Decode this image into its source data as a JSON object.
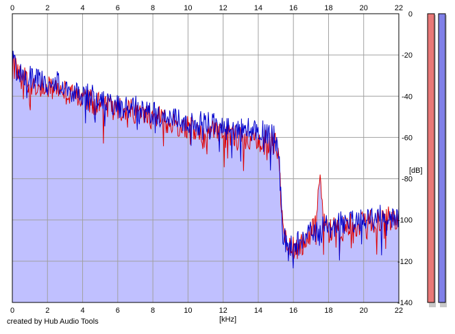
{
  "credit": "created by Hub Audio Tools",
  "chart_data": {
    "type": "line",
    "xlabel": "[kHz]",
    "ylabel": "[dB]",
    "xlim": [
      0,
      22
    ],
    "ylim": [
      -140,
      0
    ],
    "x_ticks": [
      0,
      2,
      4,
      6,
      8,
      10,
      12,
      14,
      16,
      18,
      20,
      22
    ],
    "y_ticks": [
      0,
      -20,
      -40,
      -60,
      -80,
      -100,
      -120,
      -140
    ],
    "grid": true,
    "fill_color": "#c0c0ff",
    "series": [
      {
        "color": "#0000cc",
        "x": [
          0,
          0.25,
          0.5,
          1,
          1.5,
          2,
          2.5,
          3,
          3.5,
          4,
          4.5,
          5,
          5.5,
          6,
          6.5,
          7,
          7.5,
          8,
          8.5,
          9,
          9.5,
          10,
          10.5,
          11,
          11.5,
          12,
          12.5,
          13,
          13.5,
          14,
          14.5,
          15,
          15.1,
          15.2,
          15.35,
          15.5,
          15.75,
          16,
          16.25,
          16.5,
          17,
          17.5,
          18,
          18.5,
          19,
          19.5,
          20,
          20.5,
          21,
          21.5,
          22
        ],
        "y": [
          -22,
          -25,
          -28,
          -30,
          -31,
          -33,
          -32,
          -35,
          -36,
          -38,
          -39,
          -41,
          -42,
          -43,
          -44,
          -44,
          -46,
          -47,
          -48,
          -49,
          -50,
          -51,
          -52,
          -52,
          -53,
          -54,
          -55,
          -55,
          -55,
          -56,
          -57,
          -58,
          -60,
          -72,
          -98,
          -108,
          -110,
          -111,
          -110,
          -108,
          -104,
          -103,
          -102,
          -101,
          -100,
          -99,
          -98,
          -98,
          -97,
          -97,
          -97
        ]
      },
      {
        "color": "#dd0000",
        "x": [
          0,
          0.25,
          0.5,
          1,
          1.5,
          2,
          2.5,
          3,
          3.5,
          4,
          4.5,
          5,
          5.5,
          6,
          6.5,
          7,
          7.5,
          8,
          8.5,
          9,
          9.5,
          10,
          10.5,
          11,
          11.5,
          12,
          12.5,
          13,
          13.5,
          14,
          14.5,
          15,
          15.1,
          15.2,
          15.35,
          15.5,
          15.75,
          16,
          16.25,
          16.5,
          17,
          17.3,
          17.5,
          17.7,
          18,
          18.5,
          19,
          19.5,
          20,
          20.5,
          21,
          21.5,
          22
        ],
        "y": [
          -23,
          -26,
          -30,
          -32,
          -33,
          -35,
          -34,
          -37,
          -38,
          -40,
          -41,
          -43,
          -44,
          -45,
          -46,
          -46,
          -48,
          -49,
          -50,
          -52,
          -53,
          -54,
          -55,
          -56,
          -56,
          -57,
          -58,
          -58,
          -59,
          -60,
          -61,
          -62,
          -66,
          -75,
          -96,
          -109,
          -112,
          -113,
          -112,
          -110,
          -106,
          -98,
          -80,
          -98,
          -104,
          -103,
          -102,
          -101,
          -100,
          -99,
          -99,
          -98,
          -98
        ]
      }
    ],
    "level_meters": [
      {
        "channel": "left",
        "color": "#e87878"
      },
      {
        "channel": "right",
        "color": "#8080e8"
      }
    ]
  }
}
